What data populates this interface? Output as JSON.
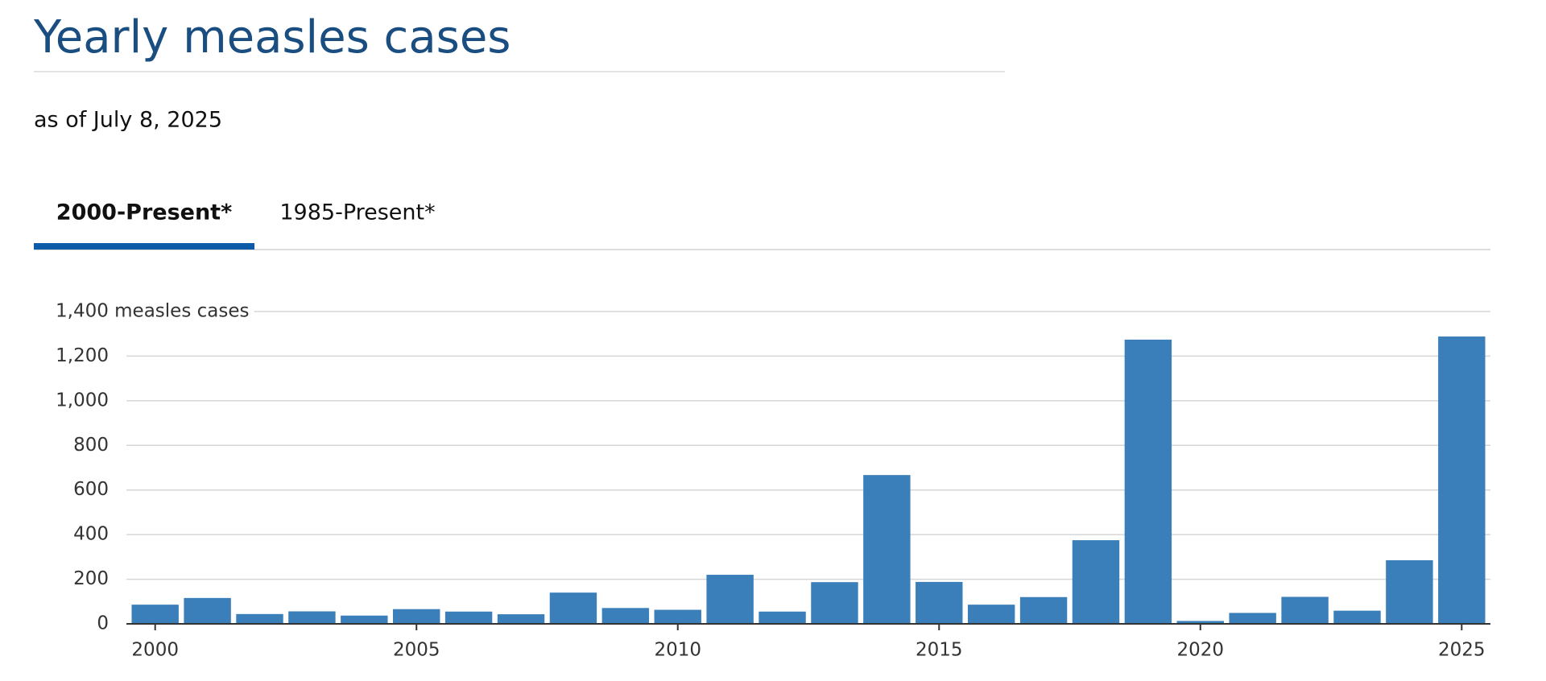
{
  "title": "Yearly measles cases",
  "subtitle": "as of July 8, 2025",
  "tabs": [
    "2000-Present*",
    "1985-Present*"
  ],
  "chart_data": {
    "type": "bar",
    "x": [
      2000,
      2001,
      2002,
      2003,
      2004,
      2005,
      2006,
      2007,
      2008,
      2009,
      2010,
      2011,
      2012,
      2013,
      2014,
      2015,
      2016,
      2017,
      2018,
      2019,
      2020,
      2021,
      2022,
      2023,
      2024,
      2025
    ],
    "values": [
      86,
      116,
      44,
      56,
      37,
      66,
      55,
      43,
      140,
      71,
      63,
      220,
      55,
      187,
      667,
      188,
      86,
      120,
      375,
      1274,
      13,
      49,
      121,
      59,
      285,
      1288
    ],
    "color": "#3a7fba",
    "xlim": [
      1999.45,
      2025.55
    ],
    "xticks": [
      2000,
      2005,
      2010,
      2015,
      2020,
      2025
    ],
    "ylim": [
      0,
      1400
    ],
    "yticks": [
      0,
      {
        "value": 200,
        "label": "200"
      },
      {
        "value": 400,
        "label": "400"
      },
      {
        "value": 600,
        "label": "600"
      },
      {
        "value": 800,
        "label": "800"
      },
      {
        "value": 1000,
        "label": "1,000"
      },
      {
        "value": 1200,
        "label": "1,200"
      },
      {
        "value": 1400,
        "label": "1,400 measles cases"
      }
    ],
    "grid": true
  }
}
